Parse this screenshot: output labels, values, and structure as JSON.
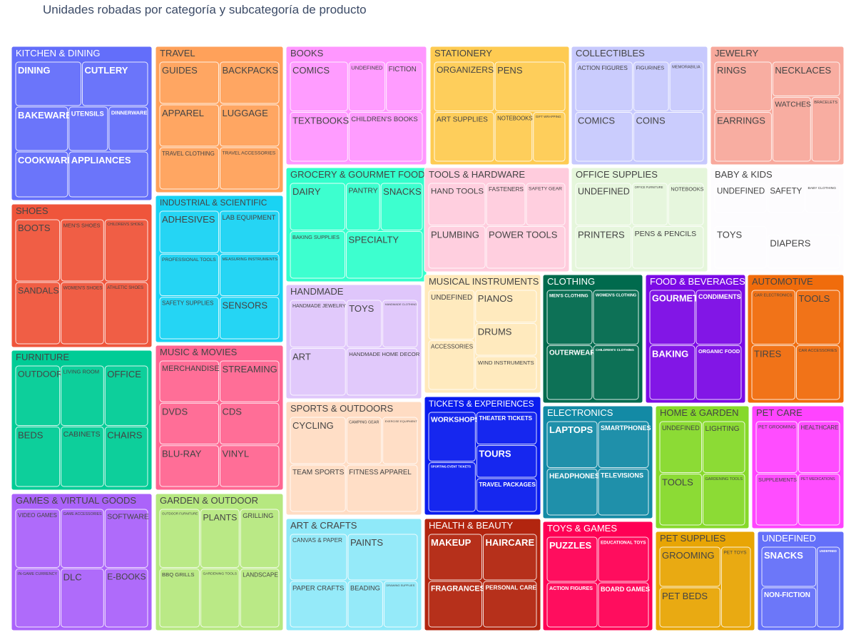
{
  "chart_data": {
    "type": "treemap",
    "title": "Unidades robadas por categoría y subcategoría de producto",
    "categories": [
      {
        "name": "KITCHEN & DINING",
        "color": "#636efa",
        "dark": true,
        "children": [
          {
            "name": "DINING",
            "value": 0.92
          },
          {
            "name": "CUTLERY",
            "value": 0.92
          },
          {
            "name": "BAKEWARE",
            "value": 0.92
          },
          {
            "name": "UTENSILS",
            "value": 0.46
          },
          {
            "name": "DINNERWARE",
            "value": 0.46
          },
          {
            "name": "COOKWARE",
            "value": 0.92
          },
          {
            "name": "APPLIANCES",
            "value": 0.46
          }
        ]
      },
      {
        "name": "SHOES",
        "color": "#ef553b",
        "dark": false,
        "children": [
          {
            "name": "BOOTS",
            "value": 1
          },
          {
            "name": "MEN'S SHOES",
            "value": 1
          },
          {
            "name": "CHILDREN'S SHOES",
            "value": 1
          },
          {
            "name": "SANDALS",
            "value": 1
          },
          {
            "name": "WOMEN'S SHOES",
            "value": 1
          },
          {
            "name": "ATHLETIC SHOES",
            "value": 1
          }
        ]
      },
      {
        "name": "FURNITURE",
        "color": "#00cc96",
        "dark": false,
        "children": [
          {
            "name": "OUTDOOR",
            "value": 1
          },
          {
            "name": "LIVING ROOM",
            "value": 1
          },
          {
            "name": "OFFICE",
            "value": 1
          },
          {
            "name": "BEDS",
            "value": 1
          },
          {
            "name": "CABINETS",
            "value": 1
          },
          {
            "name": "CHAIRS",
            "value": 1
          }
        ]
      },
      {
        "name": "GAMES & VIRTUAL GOODS",
        "color": "#ab63fa",
        "dark": false,
        "children": [
          {
            "name": "VIDEO GAMES",
            "value": 1
          },
          {
            "name": "GAME ACCESSORIES",
            "value": 1
          },
          {
            "name": "SOFTWARE",
            "value": 1
          },
          {
            "name": "IN-GAME CURRENCY",
            "value": 1
          },
          {
            "name": "DLC",
            "value": 1
          },
          {
            "name": "E-BOOKS",
            "value": 1
          }
        ]
      },
      {
        "name": "TRAVEL",
        "color": "#ffa15a",
        "dark": false,
        "children": [
          {
            "name": "GUIDES",
            "value": 1
          },
          {
            "name": "BACKPACKS",
            "value": 1
          },
          {
            "name": "APPAREL",
            "value": 1
          },
          {
            "name": "LUGGAGE",
            "value": 1
          },
          {
            "name": "TRAVEL CLOTHING",
            "value": 1
          },
          {
            "name": "TRAVEL ACCESSORIES",
            "value": 1
          }
        ]
      },
      {
        "name": "INDUSTRIAL & SCIENTIFIC",
        "color": "#19d3f3",
        "dark": false,
        "children": [
          {
            "name": "ADHESIVES",
            "value": 1
          },
          {
            "name": "LAB EQUIPMENT",
            "value": 1
          },
          {
            "name": "PROFESSIONAL TOOLS",
            "value": 1
          },
          {
            "name": "MEASURING INSTRUMENTS",
            "value": 1
          },
          {
            "name": "SAFETY SUPPLIES",
            "value": 1
          },
          {
            "name": "SENSORS",
            "value": 1
          }
        ]
      },
      {
        "name": "MUSIC & MOVIES",
        "color": "#ff6692",
        "dark": false,
        "children": [
          {
            "name": "MERCHANDISE",
            "value": 1
          },
          {
            "name": "STREAMING",
            "value": 1
          },
          {
            "name": "DVDS",
            "value": 1
          },
          {
            "name": "CDS",
            "value": 1
          },
          {
            "name": "BLU-RAY",
            "value": 1
          },
          {
            "name": "VINYL",
            "value": 1
          }
        ]
      },
      {
        "name": "GARDEN & OUTDOOR",
        "color": "#b6e880",
        "dark": false,
        "children": [
          {
            "name": "OUTDOOR FURNITURE",
            "value": 1
          },
          {
            "name": "PLANTS",
            "value": 1
          },
          {
            "name": "GRILLING",
            "value": 1
          },
          {
            "name": "BBQ GRILLS",
            "value": 1
          },
          {
            "name": "GARDENING TOOLS",
            "value": 1
          },
          {
            "name": "LANDSCAPE",
            "value": 1
          }
        ]
      },
      {
        "name": "BOOKS",
        "color": "#ff97ff",
        "dark": false,
        "children": [
          {
            "name": "COMICS",
            "value": 1
          },
          {
            "name": "UNDEFINED",
            "value": 1
          },
          {
            "name": "FICTION",
            "value": 1
          },
          {
            "name": "TEXTBOOKS",
            "value": 1
          },
          {
            "name": "CHILDREN'S BOOKS",
            "value": 0.5
          }
        ]
      },
      {
        "name": "GROCERY & GOURMET FOOD",
        "color": "#33ffcc",
        "dark": false,
        "children": [
          {
            "name": "DAIRY",
            "value": 1
          },
          {
            "name": "PANTRY",
            "value": 1
          },
          {
            "name": "SNACKS",
            "value": 1
          },
          {
            "name": "BAKING SUPPLIES",
            "value": 1
          },
          {
            "name": "SPECIALTY",
            "value": 1
          }
        ]
      },
      {
        "name": "HANDMADE",
        "color": "#dfc6fb",
        "dark": false,
        "children": [
          {
            "name": "HANDMADE JEWELRY",
            "value": 1
          },
          {
            "name": "TOYS",
            "value": 1
          },
          {
            "name": "HANDMADE CLOTHING",
            "value": 1
          },
          {
            "name": "ART",
            "value": 1
          },
          {
            "name": "HANDMADE HOME DECOR",
            "value": 0.5
          }
        ]
      },
      {
        "name": "SPORTS & OUTDOORS",
        "color": "#ffdcc3",
        "dark": false,
        "children": [
          {
            "name": "CYCLING",
            "value": 1
          },
          {
            "name": "CAMPING GEAR",
            "value": 1
          },
          {
            "name": "EXERCISE EQUIPMENT",
            "value": 1
          },
          {
            "name": "TEAM SPORTS",
            "value": 1
          },
          {
            "name": "FITNESS APPAREL",
            "value": 0.5
          }
        ]
      },
      {
        "name": "ART & CRAFTS",
        "color": "#8fe9f9",
        "dark": false,
        "children": [
          {
            "name": "CANVAS & PAPER",
            "value": 1
          },
          {
            "name": "PAINTS",
            "value": 1
          },
          {
            "name": "PAPER CRAFTS",
            "value": 1
          },
          {
            "name": "BEADING",
            "value": 1
          },
          {
            "name": "DRAWING SUPPLIES",
            "value": 0.5
          }
        ]
      },
      {
        "name": "STATIONERY",
        "color": "#fecb52",
        "dark": false,
        "children": [
          {
            "name": "ORGANIZERS",
            "value": 1
          },
          {
            "name": "PENS",
            "value": 1
          },
          {
            "name": "ART SUPPLIES",
            "value": 1
          },
          {
            "name": "NOTEBOOKS",
            "value": 1
          },
          {
            "name": "GIFT WRAPPING",
            "value": 0.5
          }
        ]
      },
      {
        "name": "TOOLS & HARDWARE",
        "color": "#ffccdd",
        "dark": false,
        "children": [
          {
            "name": "HAND TOOLS",
            "value": 1
          },
          {
            "name": "FASTENERS",
            "value": 1
          },
          {
            "name": "SAFETY GEAR",
            "value": 1
          },
          {
            "name": "PLUMBING",
            "value": 1
          },
          {
            "name": "POWER TOOLS",
            "value": 1
          }
        ]
      },
      {
        "name": "MUSICAL INSTRUMENTS",
        "color": "#ffe9bb",
        "dark": false,
        "children": [
          {
            "name": "UNDEFINED",
            "value": 1
          },
          {
            "name": "PIANOS",
            "value": 1
          },
          {
            "name": "DRUMS",
            "value": 1
          },
          {
            "name": "ACCESSORIES",
            "value": 1
          },
          {
            "name": "WIND INSTRUMENTS",
            "value": 0.5
          }
        ]
      },
      {
        "name": "TICKETS & EXPERIENCES",
        "color": "#0a1cee",
        "dark": true,
        "children": [
          {
            "name": "WORKSHOPS",
            "value": 1
          },
          {
            "name": "THEATER TICKETS",
            "value": 1
          },
          {
            "name": "TOURS",
            "value": 1
          },
          {
            "name": "SPORTING EVENT TICKETS",
            "value": 1
          },
          {
            "name": "TRAVEL PACKAGES",
            "value": 0.5
          }
        ]
      },
      {
        "name": "HEALTH & BEAUTY",
        "color": "#b2250f",
        "dark": true,
        "children": [
          {
            "name": "MAKEUP",
            "value": 1
          },
          {
            "name": "HAIRCARE",
            "value": 1
          },
          {
            "name": "FRAGRANCES",
            "value": 1
          },
          {
            "name": "PERSONAL CARE",
            "value": 1
          }
        ]
      },
      {
        "name": "COLLECTIBLES",
        "color": "#c7c9fd",
        "dark": false,
        "children": [
          {
            "name": "ACTION FIGURES",
            "value": 1
          },
          {
            "name": "FIGURINES",
            "value": 1
          },
          {
            "name": "MEMORABILIA",
            "value": 1
          },
          {
            "name": "COMICS",
            "value": 1
          },
          {
            "name": "COINS",
            "value": 0.5
          }
        ]
      },
      {
        "name": "OFFICE SUPPLIES",
        "color": "#e5f6db",
        "dark": false,
        "children": [
          {
            "name": "UNDEFINED",
            "value": 1
          },
          {
            "name": "OFFICE FURNITURE",
            "value": 1
          },
          {
            "name": "NOTEBOOKS",
            "value": 1
          },
          {
            "name": "PRINTERS",
            "value": 1
          },
          {
            "name": "PENS & PENCILS",
            "value": 1
          }
        ]
      },
      {
        "name": "CLOTHING",
        "color": "#006a4d",
        "dark": true,
        "children": [
          {
            "name": "MEN'S CLOTHING",
            "value": 1
          },
          {
            "name": "WOMEN'S CLOTHING",
            "value": 1
          },
          {
            "name": "OUTERWEAR",
            "value": 1
          },
          {
            "name": "CHILDREN'S CLOTHING",
            "value": 1
          }
        ]
      },
      {
        "name": "FOOD & BEVERAGES",
        "color": "#7b0ae5",
        "dark": true,
        "children": [
          {
            "name": "GOURMET",
            "value": 1
          },
          {
            "name": "CONDIMENTS",
            "value": 1
          },
          {
            "name": "BAKING",
            "value": 1
          },
          {
            "name": "ORGANIC FOOD",
            "value": 1
          }
        ]
      },
      {
        "name": "ELECTRONICS",
        "color": "#138aa5",
        "dark": true,
        "children": [
          {
            "name": "LAPTOPS",
            "value": 1
          },
          {
            "name": "SMARTPHONES",
            "value": 1
          },
          {
            "name": "HEADPHONES",
            "value": 1
          },
          {
            "name": "TELEVISIONS",
            "value": 1
          }
        ]
      },
      {
        "name": "TOYS & GAMES",
        "color": "#ff0055",
        "dark": true,
        "children": [
          {
            "name": "PUZZLES",
            "value": 1
          },
          {
            "name": "EDUCATIONAL TOYS",
            "value": 1
          },
          {
            "name": "ACTION FIGURES",
            "value": 1
          },
          {
            "name": "BOARD GAMES",
            "value": 1
          }
        ]
      },
      {
        "name": "JEWELRY",
        "color": "#f8a99c",
        "dark": false,
        "children": [
          {
            "name": "RINGS",
            "value": 1
          },
          {
            "name": "NECKLACES",
            "value": 1
          },
          {
            "name": "EARRINGS",
            "value": 1
          },
          {
            "name": "WATCHES",
            "value": 1
          },
          {
            "name": "BRACELETS",
            "value": 1
          }
        ]
      },
      {
        "name": "BABY & KIDS",
        "color": "#fdfcfe",
        "dark": false,
        "children": [
          {
            "name": "UNDEFINED",
            "value": 1
          },
          {
            "name": "SAFETY",
            "value": 1
          },
          {
            "name": "BABY CLOTHING",
            "value": 1
          },
          {
            "name": "TOYS",
            "value": 1
          },
          {
            "name": "DIAPERS",
            "value": 1
          }
        ]
      },
      {
        "name": "AUTOMOTIVE",
        "color": "#f06c0c",
        "dark": false,
        "children": [
          {
            "name": "CAR ELECTRONICS",
            "value": 1
          },
          {
            "name": "TOOLS",
            "value": 1
          },
          {
            "name": "TIRES",
            "value": 1
          },
          {
            "name": "CAR ACCESSORIES",
            "value": 1
          }
        ]
      },
      {
        "name": "HOME & GARDEN",
        "color": "#86d92a",
        "dark": false,
        "children": [
          {
            "name": "UNDEFINED",
            "value": 1
          },
          {
            "name": "LIGHTING",
            "value": 1
          },
          {
            "name": "TOOLS",
            "value": 1
          },
          {
            "name": "GARDENING TOOLS",
            "value": 1
          }
        ]
      },
      {
        "name": "PET CARE",
        "color": "#ff44ff",
        "dark": false,
        "children": [
          {
            "name": "PET GROOMING",
            "value": 1
          },
          {
            "name": "HEALTHCARE",
            "value": 1
          },
          {
            "name": "SUPPLEMENTS",
            "value": 1
          },
          {
            "name": "PET MEDICATIONS",
            "value": 1
          }
        ]
      },
      {
        "name": "PET SUPPLIES",
        "color": "#e8a505",
        "dark": false,
        "children": [
          {
            "name": "GROOMING",
            "value": 1
          },
          {
            "name": "PET TOYS",
            "value": 1
          },
          {
            "name": "PET BEDS",
            "value": 1
          }
        ]
      },
      {
        "name": "UNDEFINED",
        "color": "#6470f9",
        "dark": true,
        "children": [
          {
            "name": "SNACKS",
            "value": 1
          },
          {
            "name": "UNDEFINED",
            "value": 1
          },
          {
            "name": "NON-FICTION",
            "value": 1
          }
        ]
      }
    ]
  }
}
